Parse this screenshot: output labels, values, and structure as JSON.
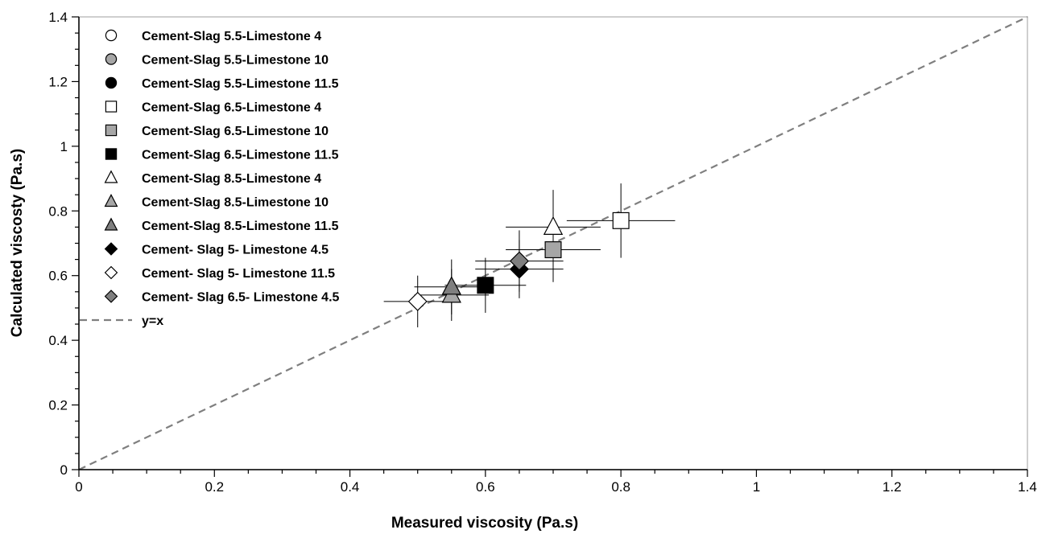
{
  "chart_data": {
    "type": "scatter",
    "xlabel": "Measured viscosity (Pa.s)",
    "ylabel": "Calculated viscosty (Pa.s)",
    "xlim": [
      0,
      1.4
    ],
    "ylim": [
      0,
      1.4
    ],
    "x_ticks": [
      "0",
      "0.2",
      "0.4",
      "0.6",
      "0.8",
      "1",
      "1.2",
      "1.4"
    ],
    "y_ticks": [
      "0",
      "0.2",
      "0.4",
      "0.6",
      "0.8",
      "1",
      "1.2",
      "1.4"
    ],
    "grid": false,
    "legend_position": "top-left",
    "series": [
      {
        "name": "Cement-Slag 5.5-Limestone 4",
        "marker": "circle",
        "fill": "#ffffff",
        "points": []
      },
      {
        "name": "Cement-Slag 5.5-Limestone 10",
        "marker": "circle",
        "fill": "#a6a6a6",
        "points": []
      },
      {
        "name": "Cement-Slag 5.5-Limestone 11.5",
        "marker": "circle",
        "fill": "#000000",
        "points": []
      },
      {
        "name": "Cement-Slag 6.5-Limestone 4",
        "marker": "square",
        "fill": "#ffffff",
        "points": [
          {
            "x": 0.8,
            "y": 0.77,
            "xerr": 0.08,
            "yerr": 0.115
          }
        ]
      },
      {
        "name": "Cement-Slag 6.5-Limestone 10",
        "marker": "square",
        "fill": "#a6a6a6",
        "points": [
          {
            "x": 0.7,
            "y": 0.68,
            "xerr": 0.07,
            "yerr": 0.1
          }
        ]
      },
      {
        "name": "Cement-Slag 6.5-Limestone 11.5",
        "marker": "square",
        "fill": "#000000",
        "points": [
          {
            "x": 0.6,
            "y": 0.57,
            "xerr": 0.06,
            "yerr": 0.085
          }
        ]
      },
      {
        "name": "Cement-Slag 8.5-Limestone 4",
        "marker": "triangle",
        "fill": "#ffffff",
        "points": [
          {
            "x": 0.7,
            "y": 0.75,
            "xerr": 0.07,
            "yerr": 0.115
          }
        ]
      },
      {
        "name": "Cement-Slag 8.5-Limestone 10",
        "marker": "triangle",
        "fill": "#a6a6a6",
        "points": [
          {
            "x": 0.55,
            "y": 0.54,
            "xerr": 0.055,
            "yerr": 0.08
          }
        ]
      },
      {
        "name": "Cement-Slag 8.5-Limestone 11.5",
        "marker": "triangle",
        "fill": "#7f7f7f",
        "points": [
          {
            "x": 0.55,
            "y": 0.565,
            "xerr": 0.055,
            "yerr": 0.085
          }
        ]
      },
      {
        "name": "Cement- Slag 5- Limestone 4.5",
        "marker": "diamond",
        "fill": "#000000",
        "points": [
          {
            "x": 0.65,
            "y": 0.62,
            "xerr": 0.065,
            "yerr": 0.09
          }
        ]
      },
      {
        "name": "Cement- Slag 5- Limestone 11.5",
        "marker": "diamond",
        "fill": "#ffffff",
        "points": [
          {
            "x": 0.5,
            "y": 0.52,
            "xerr": 0.05,
            "yerr": 0.08
          }
        ]
      },
      {
        "name": "Cement- Slag 6.5- Limestone 4.5",
        "marker": "diamond",
        "fill": "#7f7f7f",
        "points": [
          {
            "x": 0.65,
            "y": 0.645,
            "xerr": 0.065,
            "yerr": 0.095
          }
        ]
      }
    ],
    "reference_line": {
      "name": "y=x",
      "color": "#7f7f7f",
      "style": "dashed",
      "points": [
        [
          0,
          0
        ],
        [
          1.4,
          1.4
        ]
      ]
    },
    "colors": {
      "axis": "#000000",
      "frame": "#bfbfbf",
      "marker_stroke": "#000000",
      "error_bar": "#000000"
    }
  }
}
